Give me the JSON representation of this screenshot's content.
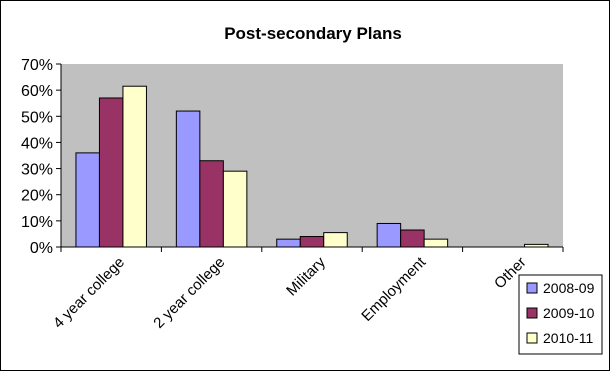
{
  "chart_data": {
    "type": "bar",
    "title": "Post-secondary Plans",
    "xlabel": "",
    "ylabel": "",
    "categories": [
      "4 year college",
      "2 year college",
      "Military",
      "Employment",
      "Other"
    ],
    "series": [
      {
        "name": "2008-09",
        "color": "#9999ff",
        "values": [
          0.36,
          0.52,
          0.03,
          0.09,
          0.0
        ]
      },
      {
        "name": "2009-10",
        "color": "#993366",
        "values": [
          0.57,
          0.33,
          0.04,
          0.065,
          0.0
        ]
      },
      {
        "name": "2010-11",
        "color": "#ffffcc",
        "values": [
          0.615,
          0.29,
          0.055,
          0.03,
          0.01
        ]
      }
    ],
    "ylim": [
      0,
      0.7
    ],
    "yticks": [
      "0%",
      "10%",
      "20%",
      "30%",
      "40%",
      "50%",
      "60%",
      "70%"
    ],
    "legend_position": "right",
    "plot_background": "#c0c0c0",
    "grid": false
  }
}
